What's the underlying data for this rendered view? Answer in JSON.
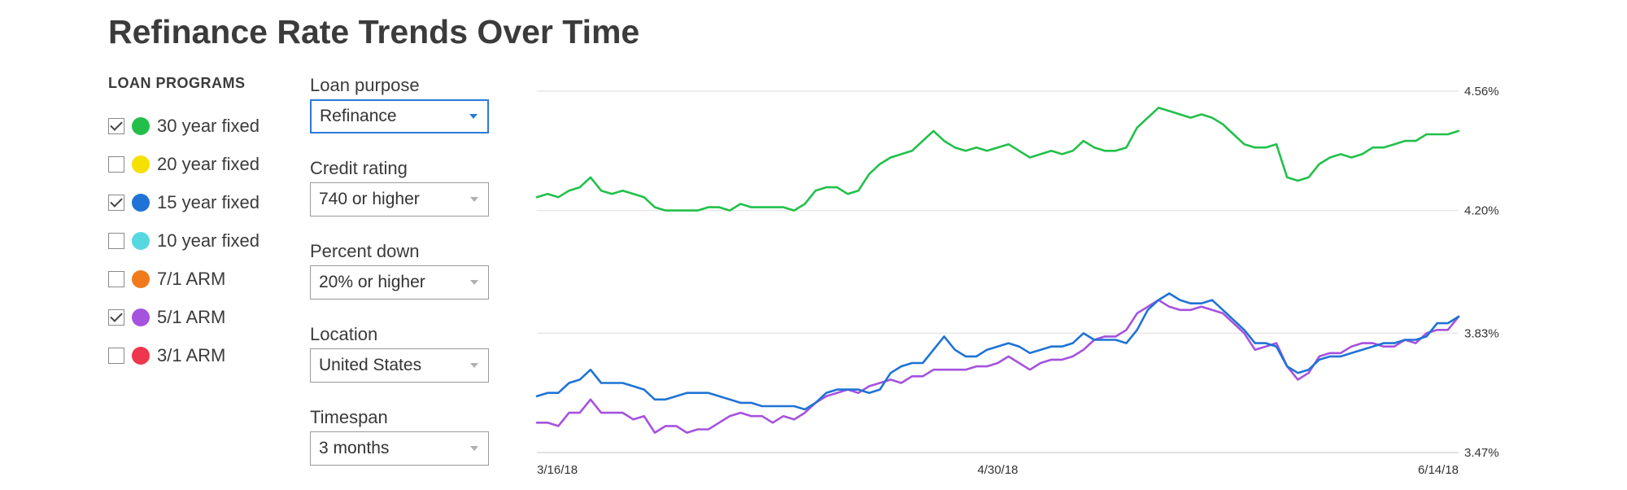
{
  "title": "Refinance Rate Trends Over Time",
  "loan_programs": {
    "heading": "LOAN PROGRAMS",
    "items": [
      {
        "label": "30 year fixed",
        "checked": true,
        "color": "#22c04a"
      },
      {
        "label": "20 year fixed",
        "checked": false,
        "color": "#f5e000"
      },
      {
        "label": "15 year fixed",
        "checked": true,
        "color": "#1f73d6"
      },
      {
        "label": "10 year fixed",
        "checked": false,
        "color": "#56d8e0"
      },
      {
        "label": "7/1 ARM",
        "checked": false,
        "color": "#f07a1c"
      },
      {
        "label": "5/1 ARM",
        "checked": true,
        "color": "#a552de"
      },
      {
        "label": "3/1 ARM",
        "checked": false,
        "color": "#f0364c"
      }
    ]
  },
  "filters": [
    {
      "label": "Loan purpose",
      "value": "Refinance"
    },
    {
      "label": "Credit rating",
      "value": "740 or higher"
    },
    {
      "label": "Percent down",
      "value": "20% or higher"
    },
    {
      "label": "Location",
      "value": "United States"
    },
    {
      "label": "Timespan",
      "value": "3 months"
    }
  ],
  "chart_data": {
    "type": "line",
    "x_start": "3/16/18",
    "x_end": "6/14/18",
    "x_tick_labels": [
      "3/16/18",
      "4/30/18",
      "6/14/18"
    ],
    "y_tick_labels": [
      "4.56%",
      "4.20%",
      "3.83%",
      "3.47%"
    ],
    "ylim": [
      3.47,
      4.56
    ],
    "grid": true,
    "series": [
      {
        "name": "30 year fixed",
        "color": "#22c04a",
        "values": [
          4.24,
          4.25,
          4.24,
          4.26,
          4.27,
          4.3,
          4.26,
          4.25,
          4.26,
          4.25,
          4.24,
          4.21,
          4.2,
          4.2,
          4.2,
          4.2,
          4.21,
          4.21,
          4.2,
          4.22,
          4.21,
          4.21,
          4.21,
          4.21,
          4.2,
          4.22,
          4.26,
          4.27,
          4.27,
          4.25,
          4.26,
          4.31,
          4.34,
          4.36,
          4.37,
          4.38,
          4.41,
          4.44,
          4.41,
          4.39,
          4.38,
          4.39,
          4.38,
          4.39,
          4.4,
          4.38,
          4.36,
          4.37,
          4.38,
          4.37,
          4.38,
          4.41,
          4.39,
          4.38,
          4.38,
          4.39,
          4.45,
          4.48,
          4.51,
          4.5,
          4.49,
          4.48,
          4.49,
          4.48,
          4.46,
          4.43,
          4.4,
          4.39,
          4.39,
          4.4,
          4.3,
          4.29,
          4.3,
          4.34,
          4.36,
          4.37,
          4.36,
          4.37,
          4.39,
          4.39,
          4.4,
          4.41,
          4.41,
          4.43,
          4.43,
          4.43,
          4.44
        ]
      },
      {
        "name": "15 year fixed",
        "color": "#1f73d6",
        "values": [
          3.64,
          3.65,
          3.65,
          3.68,
          3.69,
          3.72,
          3.68,
          3.68,
          3.68,
          3.67,
          3.66,
          3.63,
          3.63,
          3.64,
          3.65,
          3.65,
          3.65,
          3.64,
          3.63,
          3.62,
          3.62,
          3.61,
          3.61,
          3.61,
          3.61,
          3.6,
          3.62,
          3.65,
          3.66,
          3.66,
          3.66,
          3.65,
          3.66,
          3.71,
          3.73,
          3.74,
          3.74,
          3.78,
          3.82,
          3.78,
          3.76,
          3.76,
          3.78,
          3.79,
          3.8,
          3.79,
          3.77,
          3.78,
          3.79,
          3.79,
          3.8,
          3.83,
          3.81,
          3.81,
          3.81,
          3.8,
          3.84,
          3.9,
          3.93,
          3.95,
          3.93,
          3.92,
          3.92,
          3.93,
          3.9,
          3.87,
          3.84,
          3.8,
          3.8,
          3.79,
          3.73,
          3.71,
          3.72,
          3.75,
          3.76,
          3.76,
          3.77,
          3.78,
          3.79,
          3.8,
          3.8,
          3.81,
          3.81,
          3.82,
          3.86,
          3.86,
          3.88
        ]
      },
      {
        "name": "5/1 ARM",
        "color": "#a552de",
        "values": [
          3.56,
          3.56,
          3.55,
          3.59,
          3.59,
          3.63,
          3.59,
          3.59,
          3.59,
          3.57,
          3.58,
          3.53,
          3.55,
          3.55,
          3.53,
          3.54,
          3.54,
          3.56,
          3.58,
          3.59,
          3.58,
          3.58,
          3.56,
          3.58,
          3.57,
          3.59,
          3.62,
          3.64,
          3.65,
          3.66,
          3.65,
          3.67,
          3.68,
          3.69,
          3.68,
          3.7,
          3.7,
          3.72,
          3.72,
          3.72,
          3.72,
          3.73,
          3.73,
          3.74,
          3.76,
          3.74,
          3.72,
          3.74,
          3.75,
          3.75,
          3.76,
          3.78,
          3.81,
          3.82,
          3.82,
          3.84,
          3.89,
          3.91,
          3.93,
          3.91,
          3.9,
          3.9,
          3.91,
          3.9,
          3.89,
          3.86,
          3.83,
          3.78,
          3.79,
          3.8,
          3.73,
          3.69,
          3.71,
          3.76,
          3.77,
          3.77,
          3.79,
          3.8,
          3.8,
          3.79,
          3.79,
          3.81,
          3.8,
          3.83,
          3.84,
          3.84,
          3.88
        ]
      }
    ]
  }
}
